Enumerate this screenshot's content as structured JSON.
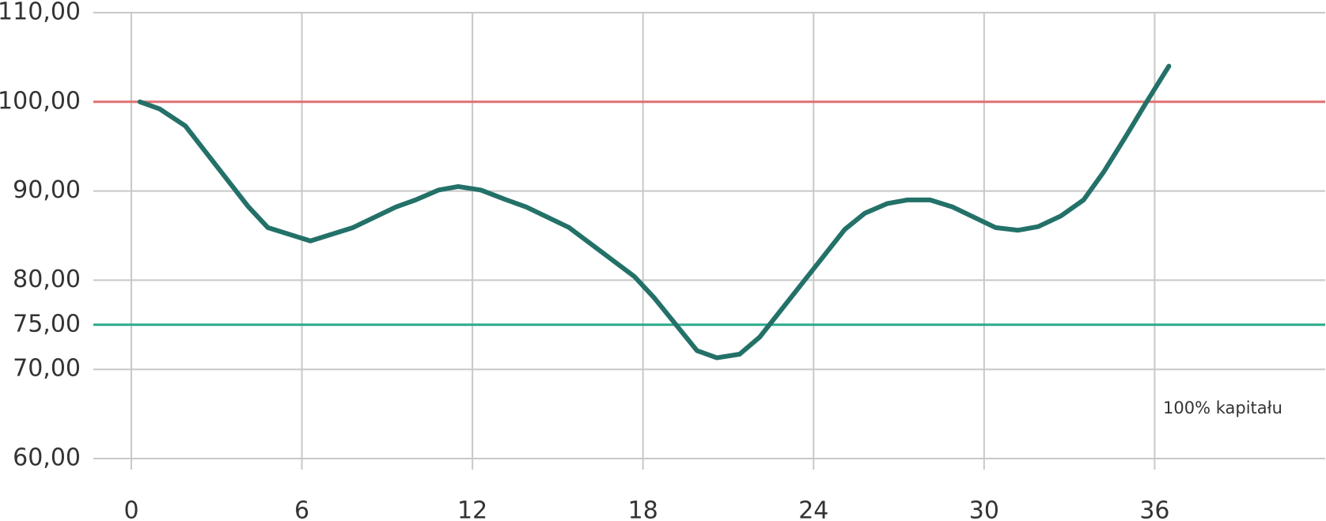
{
  "chart_data": {
    "type": "line",
    "x": [
      0.3,
      1.0,
      1.9,
      4.1,
      4.8,
      6.3,
      7.8,
      9.3,
      10.0,
      10.8,
      11.5,
      12.3,
      13.2,
      13.9,
      15.4,
      17.7,
      18.4,
      19.9,
      20.6,
      21.4,
      22.1,
      25.1,
      25.8,
      26.6,
      27.3,
      28.1,
      28.9,
      30.4,
      31.2,
      31.9,
      32.7,
      33.5,
      34.2,
      35.0,
      35.7,
      36.5
    ],
    "series": [
      {
        "color": "#237168",
        "values": [
          100,
          99.2,
          97.3,
          88.3,
          85.9,
          84.4,
          85.9,
          88.2,
          89.0,
          90.1,
          90.5,
          90.1,
          89.0,
          88.2,
          85.9,
          80.4,
          78.0,
          72.1,
          71.3,
          71.7,
          73.6,
          85.7,
          87.5,
          88.6,
          89.0,
          89.0,
          88.2,
          85.9,
          85.6,
          86.0,
          87.2,
          89.0,
          92.1,
          96.2,
          99.9,
          104.0
        ]
      }
    ],
    "xlim": [
      0,
      42
    ],
    "xticks": [
      0,
      6,
      12,
      18,
      24,
      30,
      36
    ],
    "ylim": [
      60,
      110
    ],
    "yticks": [
      {
        "value": 110,
        "label": "110,00"
      },
      {
        "value": 100,
        "label": "100,00"
      },
      {
        "value": 90,
        "label": "90,00"
      },
      {
        "value": 80,
        "label": "80,00"
      },
      {
        "value": 75,
        "label": "75,00"
      },
      {
        "value": 70,
        "label": "70,00"
      },
      {
        "value": 60,
        "label": "60,00"
      }
    ],
    "grid": true,
    "reference_lines": [
      {
        "value": 100,
        "color": "#e07070"
      },
      {
        "value": 75,
        "color": "#2aaa8a"
      }
    ],
    "annotation": "100% kapitału"
  }
}
